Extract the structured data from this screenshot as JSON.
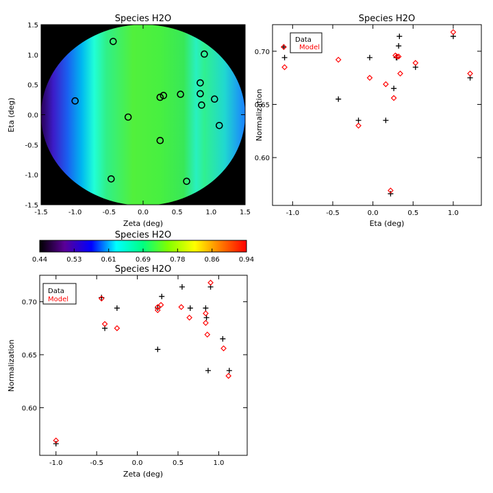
{
  "chart_data": [
    {
      "id": "map",
      "type": "heatmap",
      "title": "Species H2O",
      "xlabel": "Zeta (deg)",
      "ylabel": "Eta (deg)",
      "xlim": [
        -1.5,
        1.5
      ],
      "ylim": [
        -1.5,
        1.5
      ],
      "xticks": [
        -1.5,
        -1.0,
        -0.5,
        0.0,
        0.5,
        1.0,
        1.5
      ],
      "yticks": [
        -1.5,
        -1.0,
        -0.5,
        0.0,
        0.5,
        1.0,
        1.5
      ],
      "xtick_labels": [
        "-1.5",
        "-1.0",
        "-0.5",
        "0.0",
        "0.5",
        "1.0",
        "1.5"
      ],
      "ytick_labels": [
        "-1.5",
        "-1.0",
        "-0.5",
        "0.0",
        "0.5",
        "1.0",
        "1.5"
      ],
      "field_radius": 1.38,
      "markers": [
        {
          "zeta": -0.44,
          "eta": 1.22
        },
        {
          "zeta": -1.0,
          "eta": 0.23
        },
        {
          "zeta": -0.22,
          "eta": -0.04
        },
        {
          "zeta": -0.47,
          "eta": -1.07
        },
        {
          "zeta": 0.25,
          "eta": 0.29
        },
        {
          "zeta": 0.3,
          "eta": 0.32
        },
        {
          "zeta": 0.55,
          "eta": 0.34
        },
        {
          "zeta": 0.84,
          "eta": 0.53
        },
        {
          "zeta": 0.9,
          "eta": 1.01
        },
        {
          "zeta": 0.84,
          "eta": 0.35
        },
        {
          "zeta": 0.86,
          "eta": 0.16
        },
        {
          "zeta": 1.05,
          "eta": 0.26
        },
        {
          "zeta": 1.12,
          "eta": -0.18
        },
        {
          "zeta": 0.25,
          "eta": -0.43
        },
        {
          "zeta": 0.64,
          "eta": -1.11
        }
      ]
    },
    {
      "id": "colorbar",
      "type": "colorbar",
      "title": "Species H2O",
      "range": [
        0.44,
        0.94
      ],
      "tick_labels": [
        "0.44",
        "0.53",
        "0.61",
        "0.69",
        "0.78",
        "0.86",
        "0.94"
      ]
    },
    {
      "id": "eta_plot",
      "type": "scatter",
      "title": "Species H2O",
      "xlabel": "Eta (deg)",
      "ylabel": "Normalization",
      "xlim": [
        -1.25,
        1.35
      ],
      "ylim": [
        0.555,
        0.725
      ],
      "xticks": [
        -1.0,
        -0.5,
        0.0,
        0.5,
        1.0
      ],
      "xtick_labels": [
        "-1.0",
        "-0.5",
        "0.0",
        "0.5",
        "1.0"
      ],
      "yticks": [
        0.6,
        0.65,
        0.7
      ],
      "ytick_labels": [
        "0.60",
        "0.65",
        "0.70"
      ],
      "legend": {
        "position": "top-left",
        "data_label": "Data",
        "model_label": "Model"
      },
      "series": [
        {
          "name": "Data",
          "marker": "plus",
          "color": "#000000",
          "x": [
            -1.11,
            -1.1,
            -0.43,
            -0.04,
            -0.18,
            0.16,
            0.22,
            0.26,
            0.3,
            0.32,
            0.33,
            0.29,
            0.53,
            1.0,
            1.21
          ],
          "y": [
            0.704,
            0.694,
            0.655,
            0.694,
            0.635,
            0.635,
            0.566,
            0.665,
            0.694,
            0.705,
            0.714,
            0.694,
            0.685,
            0.714,
            0.675
          ]
        },
        {
          "name": "Model",
          "marker": "diamond",
          "color": "#ff0000",
          "x": [
            -1.11,
            -1.1,
            -0.43,
            -0.04,
            -0.18,
            0.16,
            0.22,
            0.26,
            0.3,
            0.32,
            0.34,
            0.28,
            0.53,
            1.0,
            1.21
          ],
          "y": [
            0.704,
            0.685,
            0.692,
            0.675,
            0.63,
            0.669,
            0.569,
            0.656,
            0.695,
            0.695,
            0.679,
            0.696,
            0.689,
            0.718,
            0.679
          ]
        }
      ]
    },
    {
      "id": "zeta_plot",
      "type": "scatter",
      "title": "Species H2O",
      "xlabel": "Zeta (deg)",
      "ylabel": "Normalization",
      "xlim": [
        -1.2,
        1.35
      ],
      "ylim": [
        0.555,
        0.725
      ],
      "xticks": [
        -1.0,
        -0.5,
        0.0,
        0.5,
        1.0
      ],
      "xtick_labels": [
        "-1.0",
        "-0.5",
        "0.0",
        "0.5",
        "1.0"
      ],
      "yticks": [
        0.6,
        0.65,
        0.7
      ],
      "ytick_labels": [
        "0.60",
        "0.65",
        "0.70"
      ],
      "legend": {
        "position": "top-left",
        "data_label": "Data",
        "model_label": "Model"
      },
      "series": [
        {
          "name": "Data",
          "marker": "plus",
          "color": "#000000",
          "x": [
            -1.0,
            -0.44,
            -0.4,
            -0.25,
            0.25,
            0.25,
            0.3,
            0.55,
            0.65,
            0.84,
            0.85,
            0.87,
            0.9,
            1.05,
            1.13
          ],
          "y": [
            0.566,
            0.704,
            0.675,
            0.694,
            0.655,
            0.694,
            0.705,
            0.714,
            0.694,
            0.694,
            0.685,
            0.635,
            0.714,
            0.665,
            0.635
          ]
        },
        {
          "name": "Model",
          "marker": "diamond",
          "color": "#ff0000",
          "x": [
            -1.0,
            -0.44,
            -0.4,
            -0.25,
            0.25,
            0.25,
            0.29,
            0.54,
            0.64,
            0.84,
            0.84,
            0.86,
            0.9,
            1.06,
            1.12
          ],
          "y": [
            0.569,
            0.703,
            0.679,
            0.675,
            0.695,
            0.692,
            0.697,
            0.695,
            0.685,
            0.689,
            0.68,
            0.669,
            0.718,
            0.656,
            0.63
          ]
        }
      ]
    }
  ]
}
